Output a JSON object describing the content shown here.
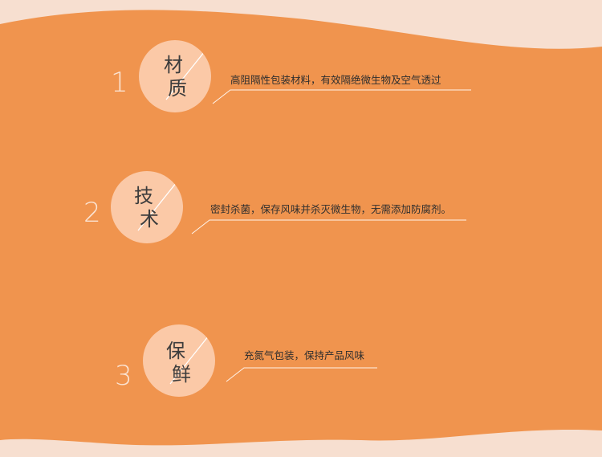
{
  "palette": {
    "background_light": "#f7dfd0",
    "panel_orange": "#f0944e",
    "circle_fill": "#fbc9a7",
    "number_color": "#fbe3d2",
    "line_color": "#fff3ea"
  },
  "features": [
    {
      "number": "1",
      "char_top": "材",
      "char_bottom": "质",
      "description": "高阻隔性包装材料，有效隔绝微生物及空气透过"
    },
    {
      "number": "2",
      "char_top": "技",
      "char_bottom": "术",
      "description": "密封杀菌，保存风味并杀灭微生物，无需添加防腐剂。"
    },
    {
      "number": "3",
      "char_top": "保",
      "char_bottom": "鲜",
      "description": "充氮气包装，保持产品风味"
    }
  ]
}
